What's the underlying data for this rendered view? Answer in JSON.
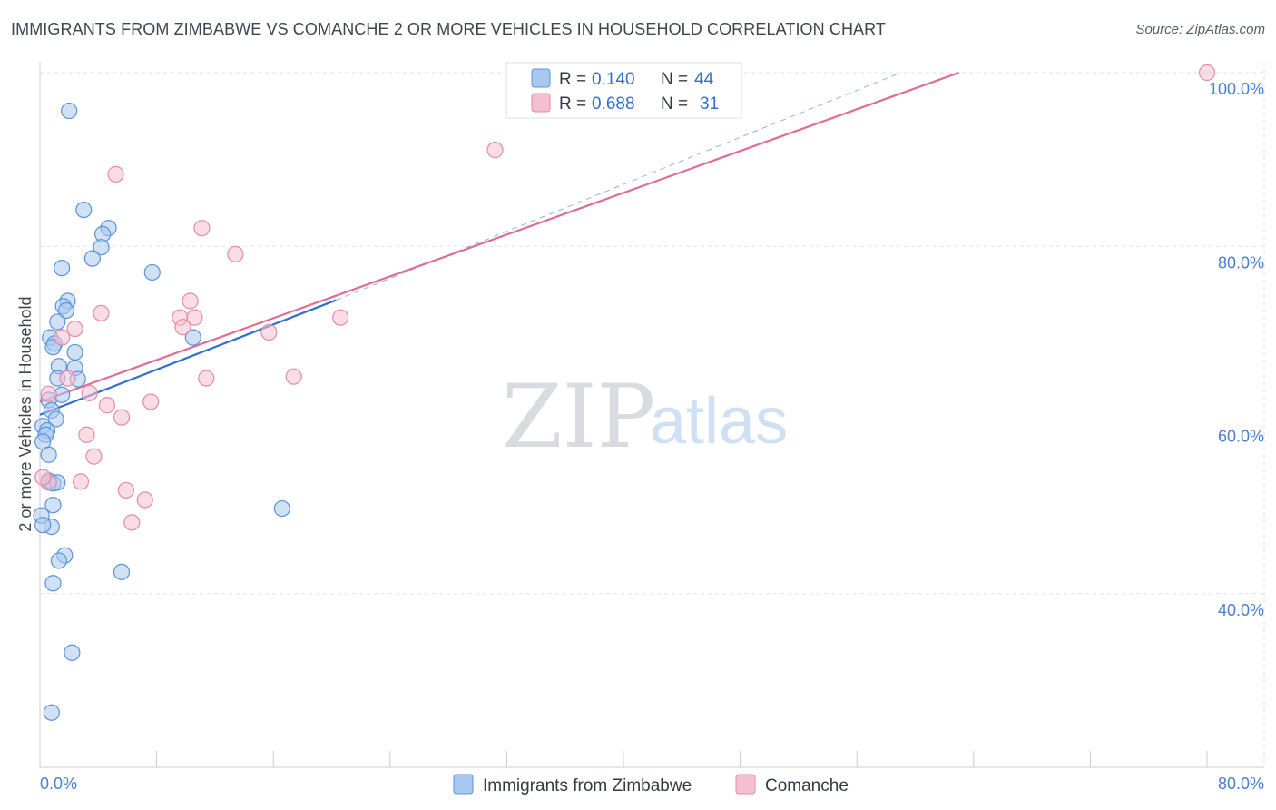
{
  "header": {
    "title": "IMMIGRANTS FROM ZIMBABWE VS COMANCHE 2 OR MORE VEHICLES IN HOUSEHOLD CORRELATION CHART",
    "source": "Source: ZipAtlas.com"
  },
  "watermark": {
    "zip": "ZIP",
    "atlas": "atlas"
  },
  "colors": {
    "blue_fill": "#a9c8ef",
    "blue_stroke": "#5b93d9",
    "blue_line": "#2f6fcf",
    "pink_fill": "#f6bfd0",
    "pink_stroke": "#e58aa8",
    "pink_line": "#e06c95",
    "grid": "#dde1e8",
    "axis_text": "#4a7fcf"
  },
  "legend": {
    "rows": [
      {
        "r_label": "R =",
        "r_value": "0.140",
        "n_label": "N =",
        "n_value": "44"
      },
      {
        "r_label": "R =",
        "r_value": "0.688",
        "n_label": "N =",
        "n_value": "31"
      }
    ]
  },
  "chart_data": {
    "type": "scatter",
    "title": "IMMIGRANTS FROM ZIMBABWE VS COMANCHE 2 OR MORE VEHICLES IN HOUSEHOLD CORRELATION CHART",
    "xlabel": "",
    "ylabel": "2 or more Vehicles in Household",
    "xlim": [
      0,
      80
    ],
    "ylim": [
      20,
      100
    ],
    "x_tick_labels": [
      "0.0%",
      "80.0%"
    ],
    "y_ticks": [
      40,
      60,
      80,
      100
    ],
    "y_tick_labels": [
      "40.0%",
      "60.0%",
      "80.0%",
      "100.0%"
    ],
    "grid": true,
    "legend_placement": "bottom-center",
    "series": [
      {
        "name": "Immigrants from Zimbabwe",
        "color": "#a9c8ef",
        "points": [
          [
            2.0,
            95.6
          ],
          [
            3.0,
            84.2
          ],
          [
            4.7,
            82.1
          ],
          [
            4.3,
            81.4
          ],
          [
            4.2,
            79.9
          ],
          [
            3.6,
            78.6
          ],
          [
            1.5,
            77.5
          ],
          [
            7.7,
            77.0
          ],
          [
            1.9,
            73.7
          ],
          [
            1.6,
            73.1
          ],
          [
            1.8,
            72.6
          ],
          [
            1.2,
            71.3
          ],
          [
            10.5,
            69.5
          ],
          [
            0.7,
            69.5
          ],
          [
            1.0,
            68.8
          ],
          [
            0.9,
            68.4
          ],
          [
            2.4,
            67.8
          ],
          [
            1.3,
            66.2
          ],
          [
            2.4,
            66.0
          ],
          [
            2.6,
            64.7
          ],
          [
            1.2,
            64.8
          ],
          [
            1.5,
            62.9
          ],
          [
            0.6,
            62.3
          ],
          [
            0.8,
            61.1
          ],
          [
            1.1,
            60.1
          ],
          [
            0.2,
            59.3
          ],
          [
            0.5,
            58.8
          ],
          [
            0.4,
            58.3
          ],
          [
            0.2,
            57.5
          ],
          [
            0.6,
            56.0
          ],
          [
            0.6,
            53.0
          ],
          [
            0.9,
            52.7
          ],
          [
            1.2,
            52.8
          ],
          [
            0.9,
            50.2
          ],
          [
            0.1,
            49.0
          ],
          [
            16.6,
            49.8
          ],
          [
            0.8,
            47.7
          ],
          [
            1.7,
            44.4
          ],
          [
            1.3,
            43.8
          ],
          [
            5.6,
            42.5
          ],
          [
            0.9,
            41.2
          ],
          [
            2.2,
            33.2
          ],
          [
            0.8,
            26.3
          ],
          [
            0.2,
            47.9
          ]
        ]
      },
      {
        "name": "Comanche",
        "color": "#f6bfd0",
        "points": [
          [
            33.0,
            100.0
          ],
          [
            80.0,
            100.0
          ],
          [
            31.2,
            91.1
          ],
          [
            5.2,
            88.3
          ],
          [
            11.1,
            82.1
          ],
          [
            13.4,
            79.1
          ],
          [
            10.3,
            73.7
          ],
          [
            4.2,
            72.3
          ],
          [
            9.6,
            71.8
          ],
          [
            10.6,
            71.8
          ],
          [
            20.6,
            71.8
          ],
          [
            9.8,
            70.7
          ],
          [
            2.4,
            70.5
          ],
          [
            1.5,
            69.5
          ],
          [
            15.7,
            70.1
          ],
          [
            1.9,
            64.8
          ],
          [
            11.4,
            64.8
          ],
          [
            17.4,
            65.0
          ],
          [
            3.4,
            63.1
          ],
          [
            0.6,
            63.0
          ],
          [
            4.6,
            61.7
          ],
          [
            7.6,
            62.1
          ],
          [
            5.6,
            60.3
          ],
          [
            3.2,
            58.3
          ],
          [
            3.7,
            55.8
          ],
          [
            2.8,
            52.9
          ],
          [
            5.9,
            51.9
          ],
          [
            7.2,
            50.8
          ],
          [
            6.3,
            48.2
          ],
          [
            0.6,
            52.8
          ],
          [
            0.2,
            53.4
          ]
        ]
      }
    ],
    "trend_lines": [
      {
        "series": "Immigrants from Zimbabwe",
        "x": [
          0,
          20.3
        ],
        "y": [
          60.6,
          73.8
        ],
        "dashed_extension": {
          "x": [
            20.3,
            59.0
          ],
          "y": [
            73.8,
            100.0
          ]
        }
      },
      {
        "series": "Comanche",
        "x": [
          0,
          63.0
        ],
        "y": [
          62.1,
          100.0
        ]
      }
    ]
  }
}
